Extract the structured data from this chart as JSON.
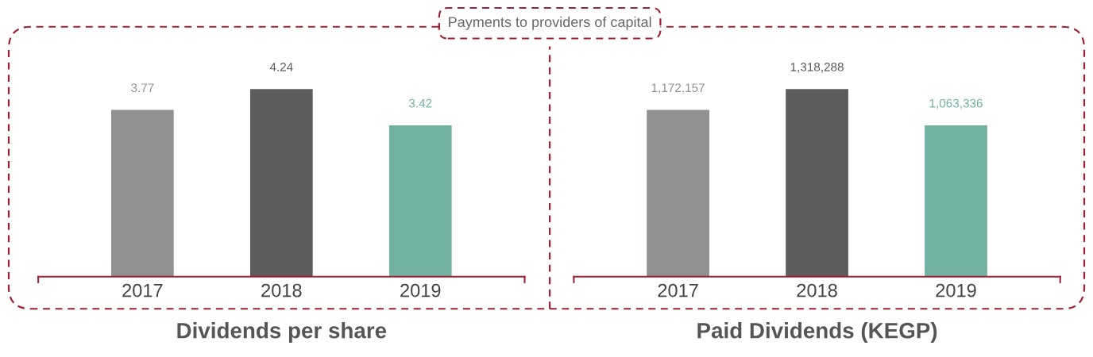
{
  "chart_data": [
    {
      "type": "bar",
      "title": "Dividends per share",
      "categories": [
        "2017",
        "2018",
        "2019"
      ],
      "values": [
        3.77,
        4.24,
        3.42
      ],
      "colors": [
        "#909191",
        "#5b5c5b",
        "#72b2a3"
      ],
      "value_labels": [
        "3.77",
        "4.24",
        "3.42"
      ],
      "tick_labels": "x",
      "grid": false,
      "legend": false,
      "annotations": [
        "Payments to providers of capital"
      ]
    },
    {
      "type": "bar",
      "title": "Paid Dividends (KEGP)",
      "categories": [
        "2017",
        "2018",
        "2019"
      ],
      "values": [
        1172157,
        1318288,
        1063336
      ],
      "colors": [
        "#909191",
        "#5b5c5b",
        "#72b2a3"
      ],
      "value_labels": [
        "1,172,157",
        "1,318,288",
        "1,063,336"
      ],
      "tick_labels": "x",
      "grid": false,
      "legend": false
    }
  ]
}
